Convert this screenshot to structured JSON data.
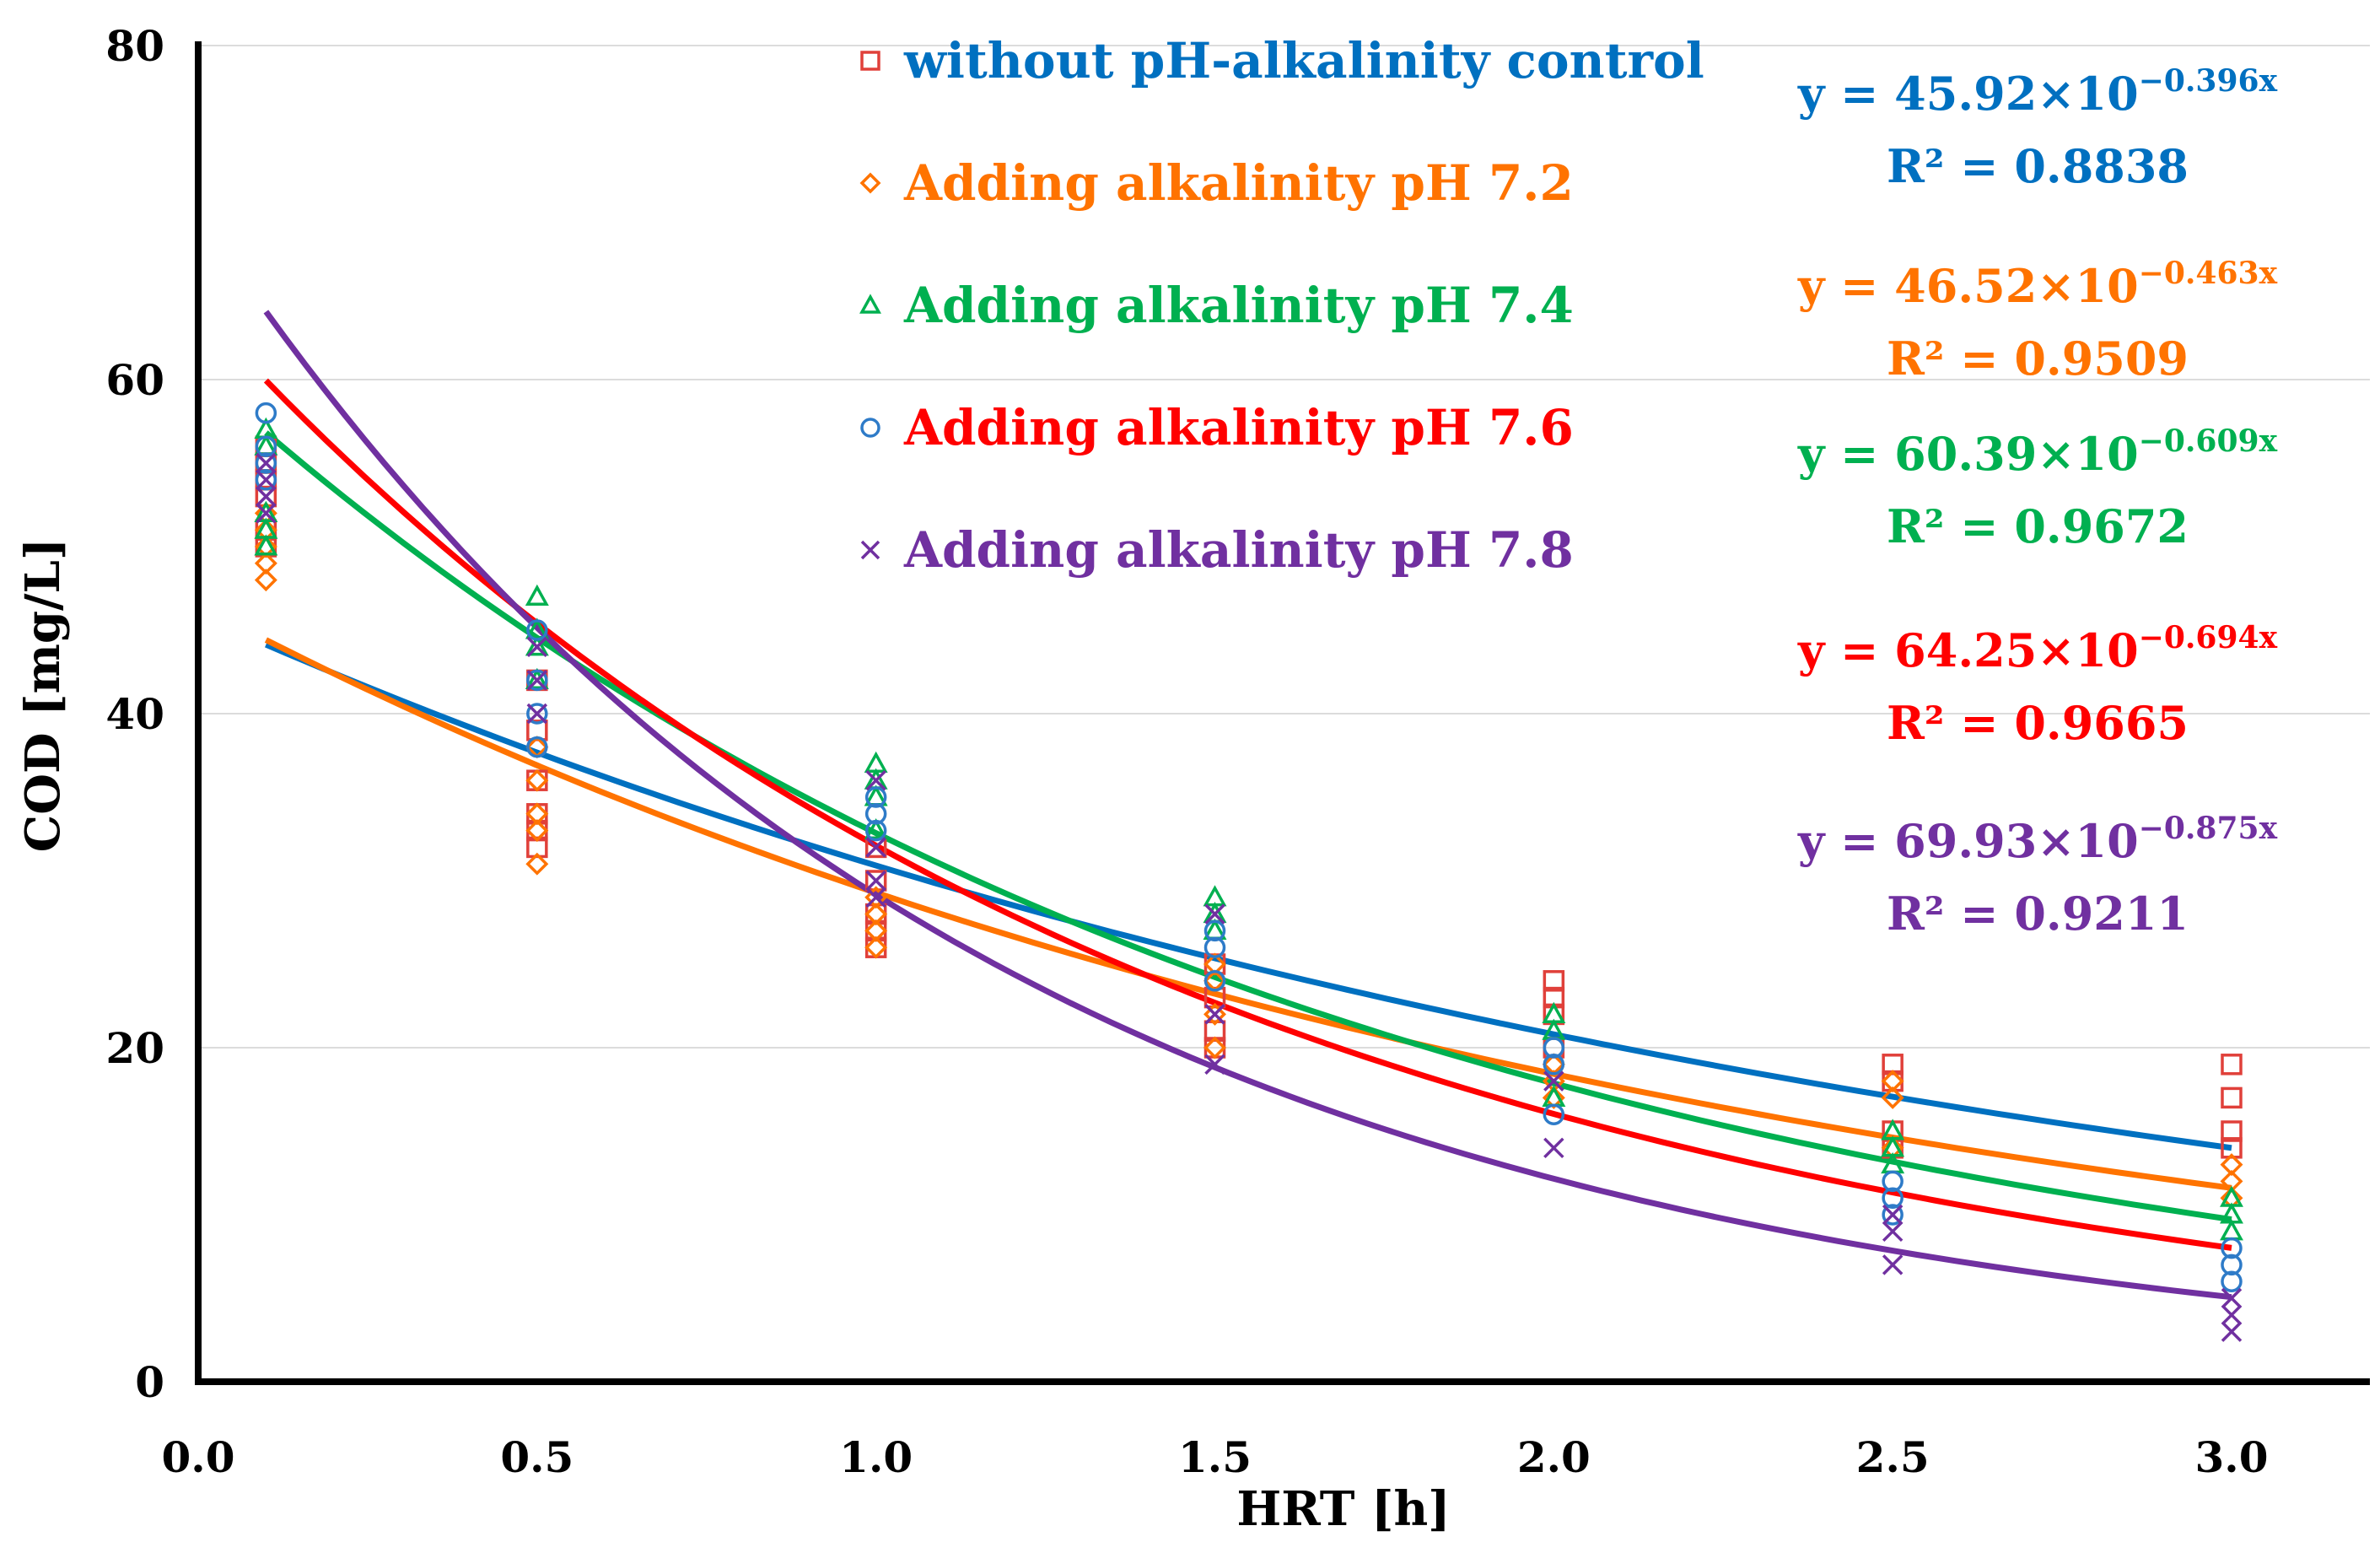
{
  "chart_data": {
    "type": "scatter",
    "xlabel": "HRT [h]",
    "ylabel": "COD [mg/L]",
    "xlim": [
      0,
      3.2
    ],
    "ylim": [
      0,
      80
    ],
    "xticks": [
      "0.0",
      "0.5",
      "1.0",
      "1.5",
      "2.0",
      "2.5",
      "3.0"
    ],
    "xtick_values": [
      0,
      0.5,
      1,
      1.5,
      2,
      2.5,
      3
    ],
    "yticks": [
      "0",
      "20",
      "40",
      "60",
      "80"
    ],
    "ytick_values": [
      0,
      20,
      40,
      60,
      80
    ],
    "grid": "horizontal",
    "legend_position": "top-center",
    "series": [
      {
        "name": "without pH-alkalinity control",
        "marker": "square",
        "marker_color": "#E0403A",
        "color": "#0070C0",
        "fit": {
          "a": 45.92,
          "b": 0.396,
          "equation": "y = 45.92×10",
          "exponent": "−0.396x",
          "r2": "R² = 0.8838"
        },
        "points": [
          [
            0.1,
            50
          ],
          [
            0.1,
            51
          ],
          [
            0.1,
            53
          ],
          [
            0.1,
            54
          ],
          [
            0.1,
            55
          ],
          [
            0.1,
            56
          ],
          [
            0.5,
            32
          ],
          [
            0.5,
            33
          ],
          [
            0.5,
            34
          ],
          [
            0.5,
            36
          ],
          [
            0.5,
            39
          ],
          [
            0.5,
            42
          ],
          [
            1,
            26
          ],
          [
            1,
            27
          ],
          [
            1,
            28
          ],
          [
            1,
            30
          ],
          [
            1,
            32
          ],
          [
            1.5,
            20
          ],
          [
            1.5,
            21
          ],
          [
            1.5,
            23
          ],
          [
            1.5,
            25
          ],
          [
            2,
            20
          ],
          [
            2,
            22
          ],
          [
            2,
            23
          ],
          [
            2,
            24
          ],
          [
            2.5,
            14
          ],
          [
            2.5,
            15
          ],
          [
            2.5,
            18
          ],
          [
            2.5,
            19
          ],
          [
            3,
            14
          ],
          [
            3,
            15
          ],
          [
            3,
            17
          ],
          [
            3,
            19
          ]
        ]
      },
      {
        "name": "Adding alkalinity pH 7.2",
        "marker": "diamond",
        "marker_color": "#FF7300",
        "color": "#FF7300",
        "fit": {
          "a": 46.52,
          "b": 0.463,
          "equation": "y = 46.52×10",
          "exponent": "−0.463x",
          "r2": "R² = 0.9509"
        },
        "points": [
          [
            0.1,
            48
          ],
          [
            0.1,
            49
          ],
          [
            0.1,
            50
          ],
          [
            0.1,
            51
          ],
          [
            0.1,
            52
          ],
          [
            0.5,
            31
          ],
          [
            0.5,
            33
          ],
          [
            0.5,
            34
          ],
          [
            0.5,
            36
          ],
          [
            0.5,
            38
          ],
          [
            1,
            26
          ],
          [
            1,
            27
          ],
          [
            1,
            28
          ],
          [
            1,
            29
          ],
          [
            1.5,
            20
          ],
          [
            1.5,
            22
          ],
          [
            1.5,
            24
          ],
          [
            1.5,
            25
          ],
          [
            2,
            17
          ],
          [
            2,
            18
          ],
          [
            2,
            19
          ],
          [
            2.5,
            14
          ],
          [
            2.5,
            17
          ],
          [
            2.5,
            18
          ],
          [
            3,
            11
          ],
          [
            3,
            12
          ],
          [
            3,
            13
          ]
        ]
      },
      {
        "name": "Adding alkalinity pH 7.4",
        "marker": "triangle",
        "marker_color": "#00B050",
        "color": "#00B050",
        "fit": {
          "a": 60.39,
          "b": 0.609,
          "equation": "y = 60.39×10",
          "exponent": "−0.609x",
          "r2": "R² = 0.9672"
        },
        "points": [
          [
            0.1,
            50
          ],
          [
            0.1,
            51
          ],
          [
            0.1,
            52
          ],
          [
            0.1,
            56
          ],
          [
            0.1,
            57
          ],
          [
            0.5,
            47
          ],
          [
            0.5,
            45
          ],
          [
            0.5,
            44
          ],
          [
            0.5,
            42
          ],
          [
            1,
            37
          ],
          [
            1,
            36
          ],
          [
            1,
            35
          ],
          [
            1,
            33
          ],
          [
            1.5,
            29
          ],
          [
            1.5,
            28
          ],
          [
            1.5,
            27
          ],
          [
            2,
            22
          ],
          [
            2,
            21
          ],
          [
            2,
            17
          ],
          [
            2.5,
            15
          ],
          [
            2.5,
            14
          ],
          [
            2.5,
            13
          ],
          [
            3,
            11
          ],
          [
            3,
            10
          ],
          [
            3,
            9
          ]
        ]
      },
      {
        "name": "Adding alkalinity pH 7.6",
        "marker": "circle",
        "marker_color": "#2E7BC8",
        "color": "#FF0000",
        "fit": {
          "a": 64.25,
          "b": 0.694,
          "equation": "y = 64.25×10",
          "exponent": "−0.694x",
          "r2": "R² = 0.9665"
        },
        "points": [
          [
            0.1,
            58
          ],
          [
            0.1,
            56
          ],
          [
            0.1,
            55
          ],
          [
            0.1,
            54
          ],
          [
            0.5,
            38
          ],
          [
            0.5,
            40
          ],
          [
            0.5,
            42
          ],
          [
            0.5,
            45
          ],
          [
            1,
            35
          ],
          [
            1,
            34
          ],
          [
            1,
            33
          ],
          [
            1.5,
            27
          ],
          [
            1.5,
            26
          ],
          [
            1.5,
            24
          ],
          [
            2,
            20
          ],
          [
            2,
            19
          ],
          [
            2,
            16
          ],
          [
            2.5,
            12
          ],
          [
            2.5,
            11
          ],
          [
            2.5,
            10
          ],
          [
            3,
            8
          ],
          [
            3,
            7
          ],
          [
            3,
            6
          ]
        ]
      },
      {
        "name": "Adding alkalinity pH 7.8",
        "marker": "cross",
        "marker_color": "#7030A0",
        "color": "#7030A0",
        "fit": {
          "a": 69.93,
          "b": 0.875,
          "equation": "y = 69.93×10",
          "exponent": "−0.875x",
          "r2": "R² = 0.9211"
        },
        "points": [
          [
            0.1,
            52
          ],
          [
            0.1,
            53
          ],
          [
            0.1,
            54
          ],
          [
            0.1,
            55
          ],
          [
            0.5,
            40
          ],
          [
            0.5,
            42
          ],
          [
            0.5,
            44
          ],
          [
            1,
            36
          ],
          [
            1,
            32
          ],
          [
            1,
            30
          ],
          [
            1,
            29
          ],
          [
            1.5,
            28
          ],
          [
            1.5,
            22
          ],
          [
            1.5,
            19
          ],
          [
            2,
            18
          ],
          [
            2,
            14
          ],
          [
            2.5,
            10
          ],
          [
            2.5,
            9
          ],
          [
            2.5,
            7
          ],
          [
            3,
            5
          ],
          [
            3,
            4
          ],
          [
            3,
            3
          ]
        ]
      }
    ]
  }
}
